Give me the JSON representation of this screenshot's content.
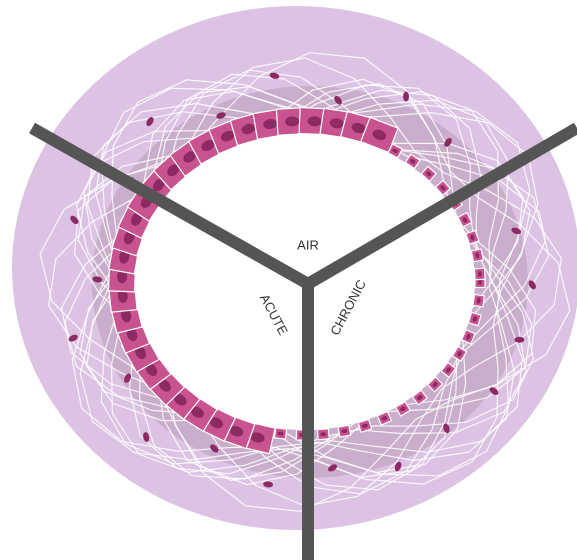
{
  "labels": {
    "air": "AIR",
    "acute": "ACUTE",
    "chronic": "CHRONIC"
  }
}
